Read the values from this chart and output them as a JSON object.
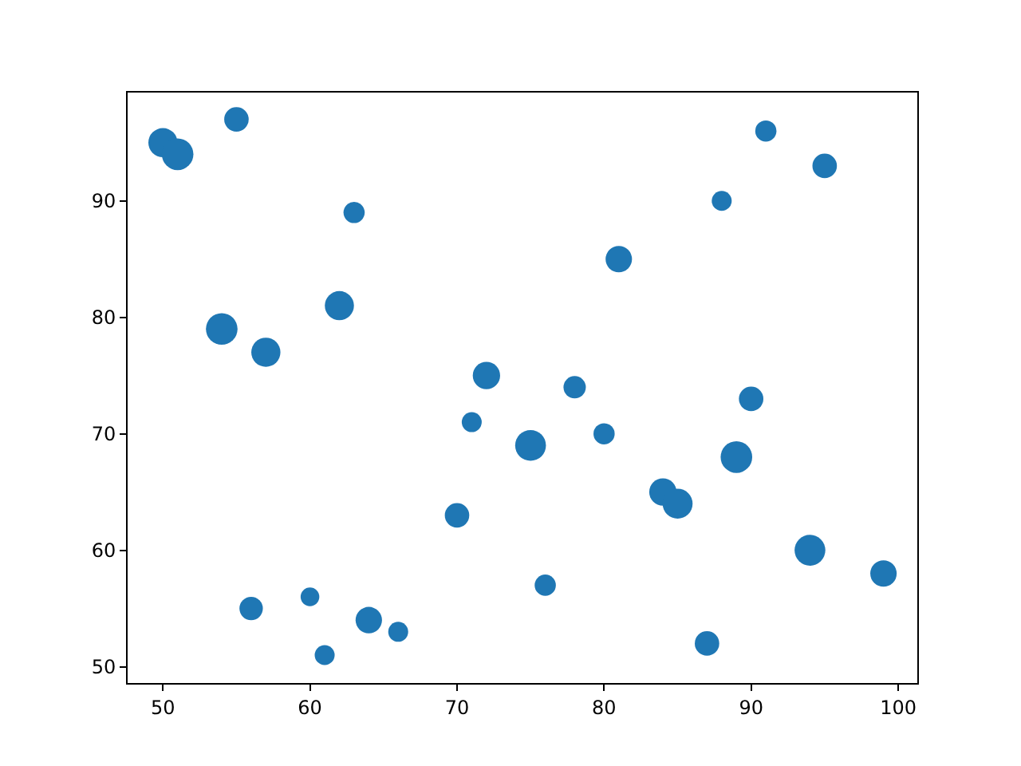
{
  "chart_data": {
    "type": "bubble",
    "x": [
      50,
      51,
      55,
      63,
      54,
      57,
      62,
      72,
      71,
      75,
      78,
      80,
      81,
      70,
      56,
      60,
      61,
      64,
      66,
      76,
      84,
      85,
      87,
      88,
      89,
      90,
      91,
      95,
      94,
      99
    ],
    "values": [
      95,
      94,
      97,
      89,
      79,
      77,
      81,
      75,
      71,
      69,
      74,
      70,
      85,
      63,
      55,
      56,
      51,
      54,
      53,
      57,
      65,
      64,
      52,
      90,
      68,
      73,
      96,
      93,
      60,
      58
    ],
    "sizes": [
      0.85,
      1,
      0.6,
      0.45,
      1,
      0.85,
      0.85,
      0.75,
      0.4,
      0.95,
      0.5,
      0.45,
      0.7,
      0.6,
      0.55,
      0.35,
      0.4,
      0.7,
      0.4,
      0.45,
      0.75,
      0.9,
      0.6,
      0.4,
      1,
      0.6,
      0.45,
      0.6,
      0.95,
      0.7
    ],
    "color": "#1f77b4",
    "xlim": [
      47.6,
      101.3
    ],
    "xticks": [
      50,
      60,
      70,
      80,
      90,
      100
    ],
    "ylim": [
      48.6,
      99.3
    ],
    "yticks": [
      50,
      60,
      70,
      80,
      90
    ]
  }
}
